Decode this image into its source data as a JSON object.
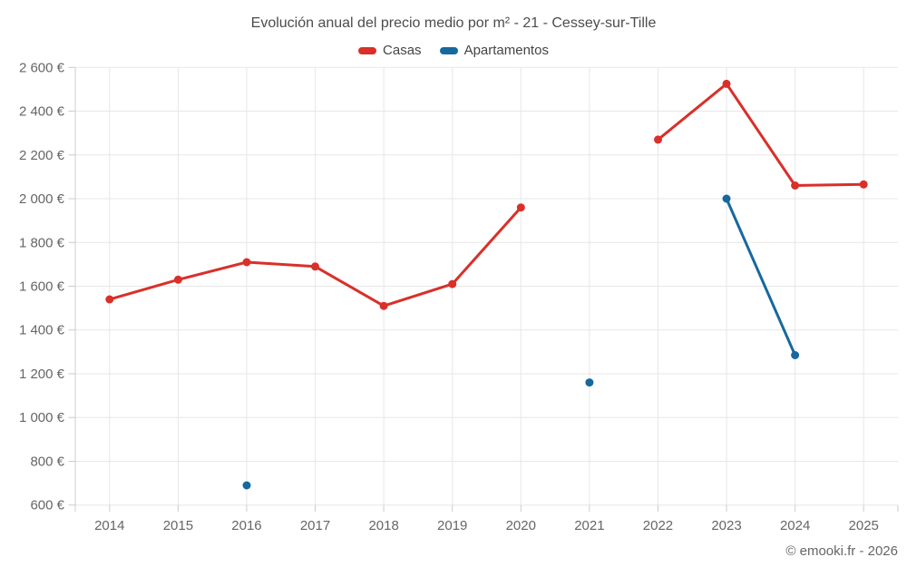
{
  "chart_data": {
    "type": "line",
    "title": "Evolución anual del precio medio por m² - 21 - Cessey-sur-Tille",
    "categories": [
      "2014",
      "2015",
      "2016",
      "2017",
      "2018",
      "2019",
      "2020",
      "2021",
      "2022",
      "2023",
      "2024",
      "2025"
    ],
    "series": [
      {
        "name": "Casas",
        "color": "#d93029",
        "values": [
          1540,
          1630,
          1710,
          1690,
          1510,
          1610,
          1960,
          null,
          2270,
          2525,
          2060,
          2065
        ]
      },
      {
        "name": "Apartamentos",
        "color": "#16699e",
        "values": [
          null,
          null,
          690,
          null,
          null,
          null,
          null,
          1160,
          null,
          2000,
          1285,
          null
        ]
      }
    ],
    "yaxis": {
      "min": 600,
      "max": 2600,
      "step": 200,
      "unit": "€",
      "tick_labels": [
        "600 €",
        "800 €",
        "1 000 €",
        "1 200 €",
        "1 400 €",
        "1 600 €",
        "1 800 €",
        "2 000 €",
        "2 200 €",
        "2 400 €",
        "2 600 €"
      ]
    },
    "xlabel": "",
    "ylabel": "",
    "grid": true,
    "legend_position": "top",
    "credit": "© emooki.fr - 2026",
    "colors": {
      "grid": "#e7e7e7",
      "axis": "#cccccc",
      "tick_text": "#666666",
      "background": "#ffffff"
    }
  }
}
